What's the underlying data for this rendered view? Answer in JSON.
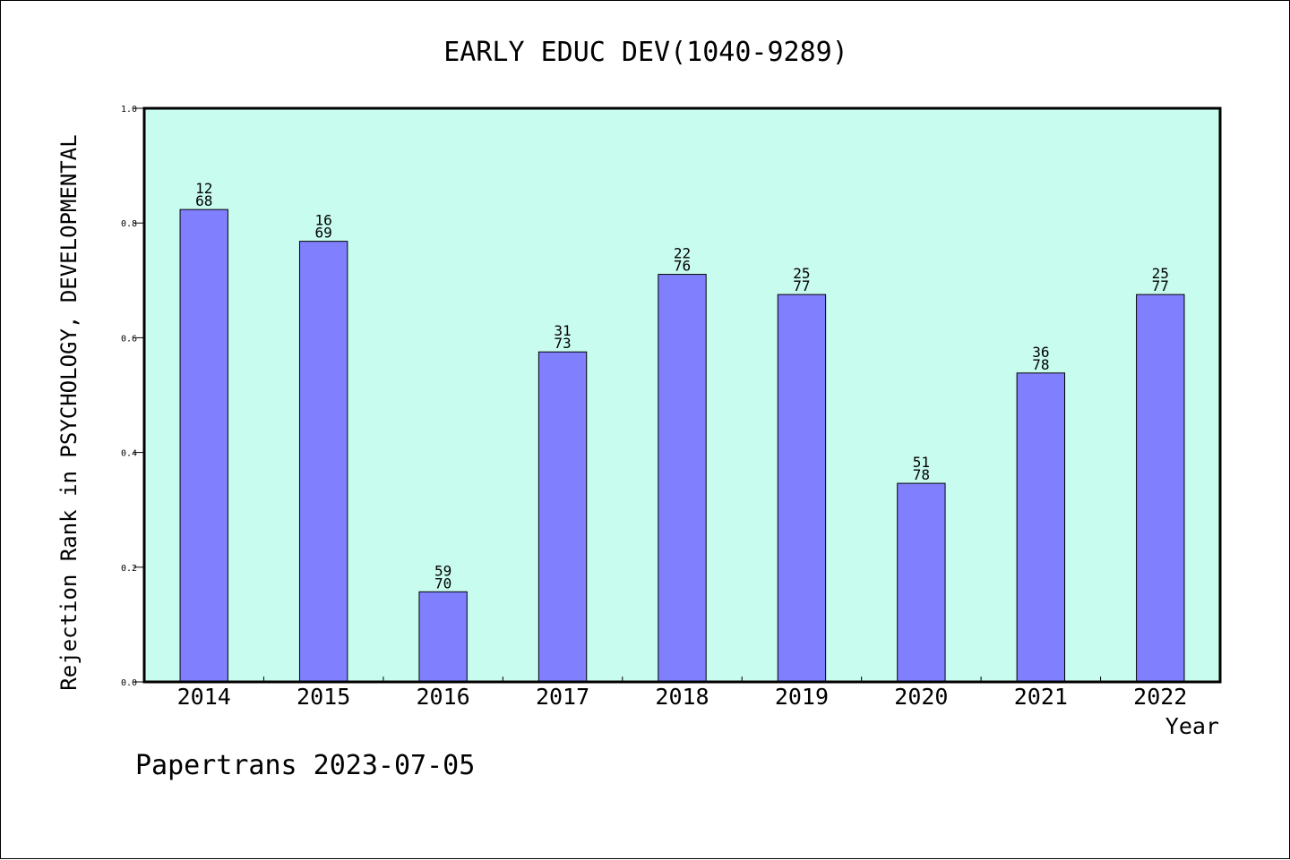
{
  "chart_data": {
    "type": "bar",
    "title": "EARLY EDUC DEV(1040-9289)",
    "xlabel": "Year",
    "ylabel": "Rejection Rank in PSYCHOLOGY, DEVELOPMENTAL",
    "categories": [
      "2014",
      "2015",
      "2016",
      "2017",
      "2018",
      "2019",
      "2020",
      "2021",
      "2022"
    ],
    "values": [
      0.8235,
      0.7681,
      0.1571,
      0.5753,
      0.7105,
      0.6753,
      0.3462,
      0.5385,
      0.6753
    ],
    "bar_labels": [
      [
        "12",
        "68"
      ],
      [
        "16",
        "69"
      ],
      [
        "59",
        "70"
      ],
      [
        "31",
        "73"
      ],
      [
        "22",
        "76"
      ],
      [
        "25",
        "77"
      ],
      [
        "51",
        "78"
      ],
      [
        "36",
        "78"
      ],
      [
        "25",
        "77"
      ]
    ],
    "ylim": [
      0.0,
      1.0
    ],
    "yticks": [
      "0.0",
      "0.2",
      "0.4",
      "0.6",
      "0.8",
      "1.0"
    ],
    "grid": false,
    "colors": {
      "bar": "#8080ff",
      "plot_background": "#c8fcee",
      "axis": "#000000"
    }
  },
  "footer": {
    "text": "Papertrans 2023-07-05"
  }
}
